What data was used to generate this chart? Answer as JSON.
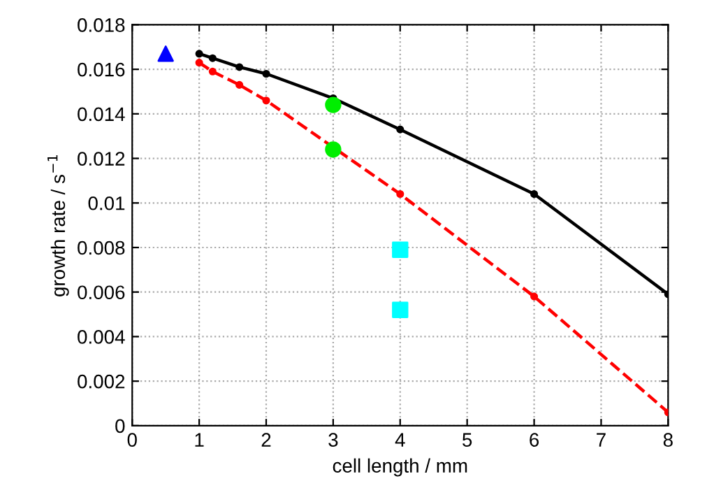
{
  "chart_data": {
    "type": "line",
    "xlabel": "cell length / mm",
    "ylabel": "growth rate / s$^{−1}$",
    "xlim": [
      0,
      8
    ],
    "ylim": [
      0,
      0.018
    ],
    "xticks": [
      0,
      1,
      2,
      3,
      4,
      5,
      6,
      7,
      8
    ],
    "yticks": [
      0,
      {
        "value": 0.002,
        "label": "0.002"
      },
      {
        "value": 0.004,
        "label": "0.004"
      },
      {
        "value": 0.006,
        "label": "0.006"
      },
      {
        "value": 0.008,
        "label": "0.008"
      },
      {
        "value": 0.01,
        "label": "0.01"
      },
      {
        "value": 0.012,
        "label": "0.012"
      },
      {
        "value": 0.014,
        "label": "0.014"
      },
      {
        "value": 0.016,
        "label": "0.016"
      },
      {
        "value": 0.018,
        "label": "0.018"
      }
    ],
    "grid": true,
    "legend": false,
    "series": [
      {
        "color": "#000000",
        "marker": "circle",
        "line_style": "solid",
        "x": [
          1,
          1.2,
          1.6,
          2,
          3,
          4,
          6,
          8
        ],
        "values": [
          0.0167,
          0.0165,
          0.0161,
          0.0158,
          0.0147,
          0.0133,
          0.0104,
          0.0059
        ]
      },
      {
        "color": "#ff0000",
        "marker": "circle",
        "line_style": "dashed",
        "x": [
          1,
          1.2,
          1.6,
          2,
          3,
          4,
          6,
          8
        ],
        "values": [
          0.0163,
          0.0159,
          0.0153,
          0.0146,
          0.0125,
          0.0104,
          0.0058,
          0.0006
        ]
      },
      {
        "type": "scatter",
        "color": "#00ee00",
        "marker": "circle",
        "x": [
          3,
          3
        ],
        "values": [
          0.0144,
          0.0124
        ]
      },
      {
        "type": "scatter",
        "color": "#00ffff",
        "marker": "square",
        "x": [
          4,
          4
        ],
        "values": [
          0.0079,
          0.0052
        ]
      },
      {
        "type": "scatter",
        "color": "#0000ff",
        "marker": "triangle",
        "x": [
          0.5
        ],
        "values": [
          0.0167
        ]
      }
    ]
  }
}
